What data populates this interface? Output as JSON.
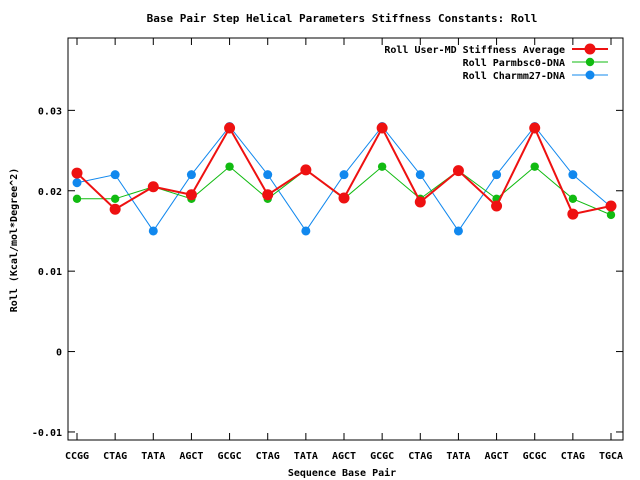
{
  "chart_data": {
    "type": "line",
    "title": "Base Pair Step Helical Parameters Stiffness Constants: Roll",
    "xlabel": "Sequence Base Pair",
    "ylabel": "Roll (Kcal/mol*Degree^2)",
    "categories": [
      "CCGG",
      "CTAG",
      "TATA",
      "AGCT",
      "GCGC",
      "CTAG",
      "TATA",
      "AGCT",
      "GCGC",
      "CTAG",
      "TATA",
      "AGCT",
      "GCGC",
      "CTAG",
      "TGCA"
    ],
    "ylim": [
      -0.011,
      0.039
    ],
    "yticks": [
      -0.01,
      0,
      0.01,
      0.02,
      0.03
    ],
    "ytick_labels": [
      "-0.01",
      "0",
      "0.01",
      "0.02",
      "0.03"
    ],
    "grid": false,
    "legend_position": "top-right",
    "series": [
      {
        "name": "Roll User-MD Stiffness Average",
        "color": "#ee1111",
        "values": [
          0.0222,
          0.0177,
          0.0205,
          0.0195,
          0.0278,
          0.0195,
          0.0226,
          0.0191,
          0.0278,
          0.0186,
          0.0225,
          0.0181,
          0.0278,
          0.0171,
          0.0181
        ]
      },
      {
        "name": "Roll Parmbsc0-DNA",
        "color": "#11bb11",
        "values": [
          0.019,
          0.019,
          0.0205,
          0.019,
          0.023,
          0.019,
          0.0226,
          0.019,
          0.023,
          0.019,
          0.0225,
          0.019,
          0.023,
          0.019,
          0.017
        ]
      },
      {
        "name": "Roll Charmm27-DNA",
        "color": "#1188ee",
        "values": [
          0.021,
          0.022,
          0.015,
          0.022,
          0.028,
          0.022,
          0.015,
          0.022,
          0.028,
          0.022,
          0.015,
          0.022,
          0.028,
          0.022,
          0.018
        ]
      }
    ]
  }
}
